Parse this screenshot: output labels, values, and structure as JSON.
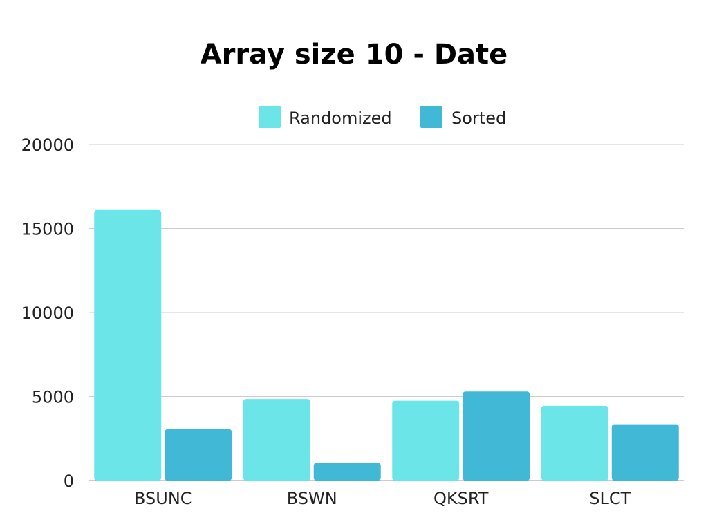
{
  "chart_data": {
    "type": "bar",
    "title": "Array size 10 - Date",
    "xlabel": "",
    "ylabel": "",
    "categories": [
      "BSUNC",
      "BSWN",
      "QKSRT",
      "SLCT"
    ],
    "series": [
      {
        "name": "Randomized",
        "values": [
          16100,
          4850,
          4750,
          4450
        ],
        "color": "#6ce5e8"
      },
      {
        "name": "Sorted",
        "values": [
          3050,
          1050,
          5300,
          3350
        ],
        "color": "#41b8d5"
      }
    ],
    "ylim": [
      0,
      20000
    ],
    "yticks": [
      0,
      5000,
      10000,
      15000,
      20000
    ],
    "grid": true,
    "legend_position": "top-center"
  }
}
